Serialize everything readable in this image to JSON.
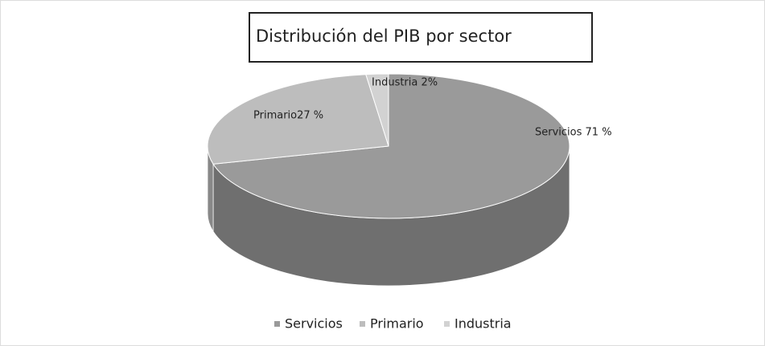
{
  "chart_data": {
    "type": "pie3d",
    "title": "Distribución del PIB por sector",
    "categories": [
      "Servicios",
      "Primario",
      "Industria"
    ],
    "values": [
      71,
      27,
      2
    ],
    "value_labels": [
      "Servicios 71 %",
      "Primario27 %",
      "Industria 2%"
    ],
    "colors": [
      "#9a9a9a",
      "#bdbdbd",
      "#d2d2d2"
    ],
    "legend": "bottom"
  }
}
